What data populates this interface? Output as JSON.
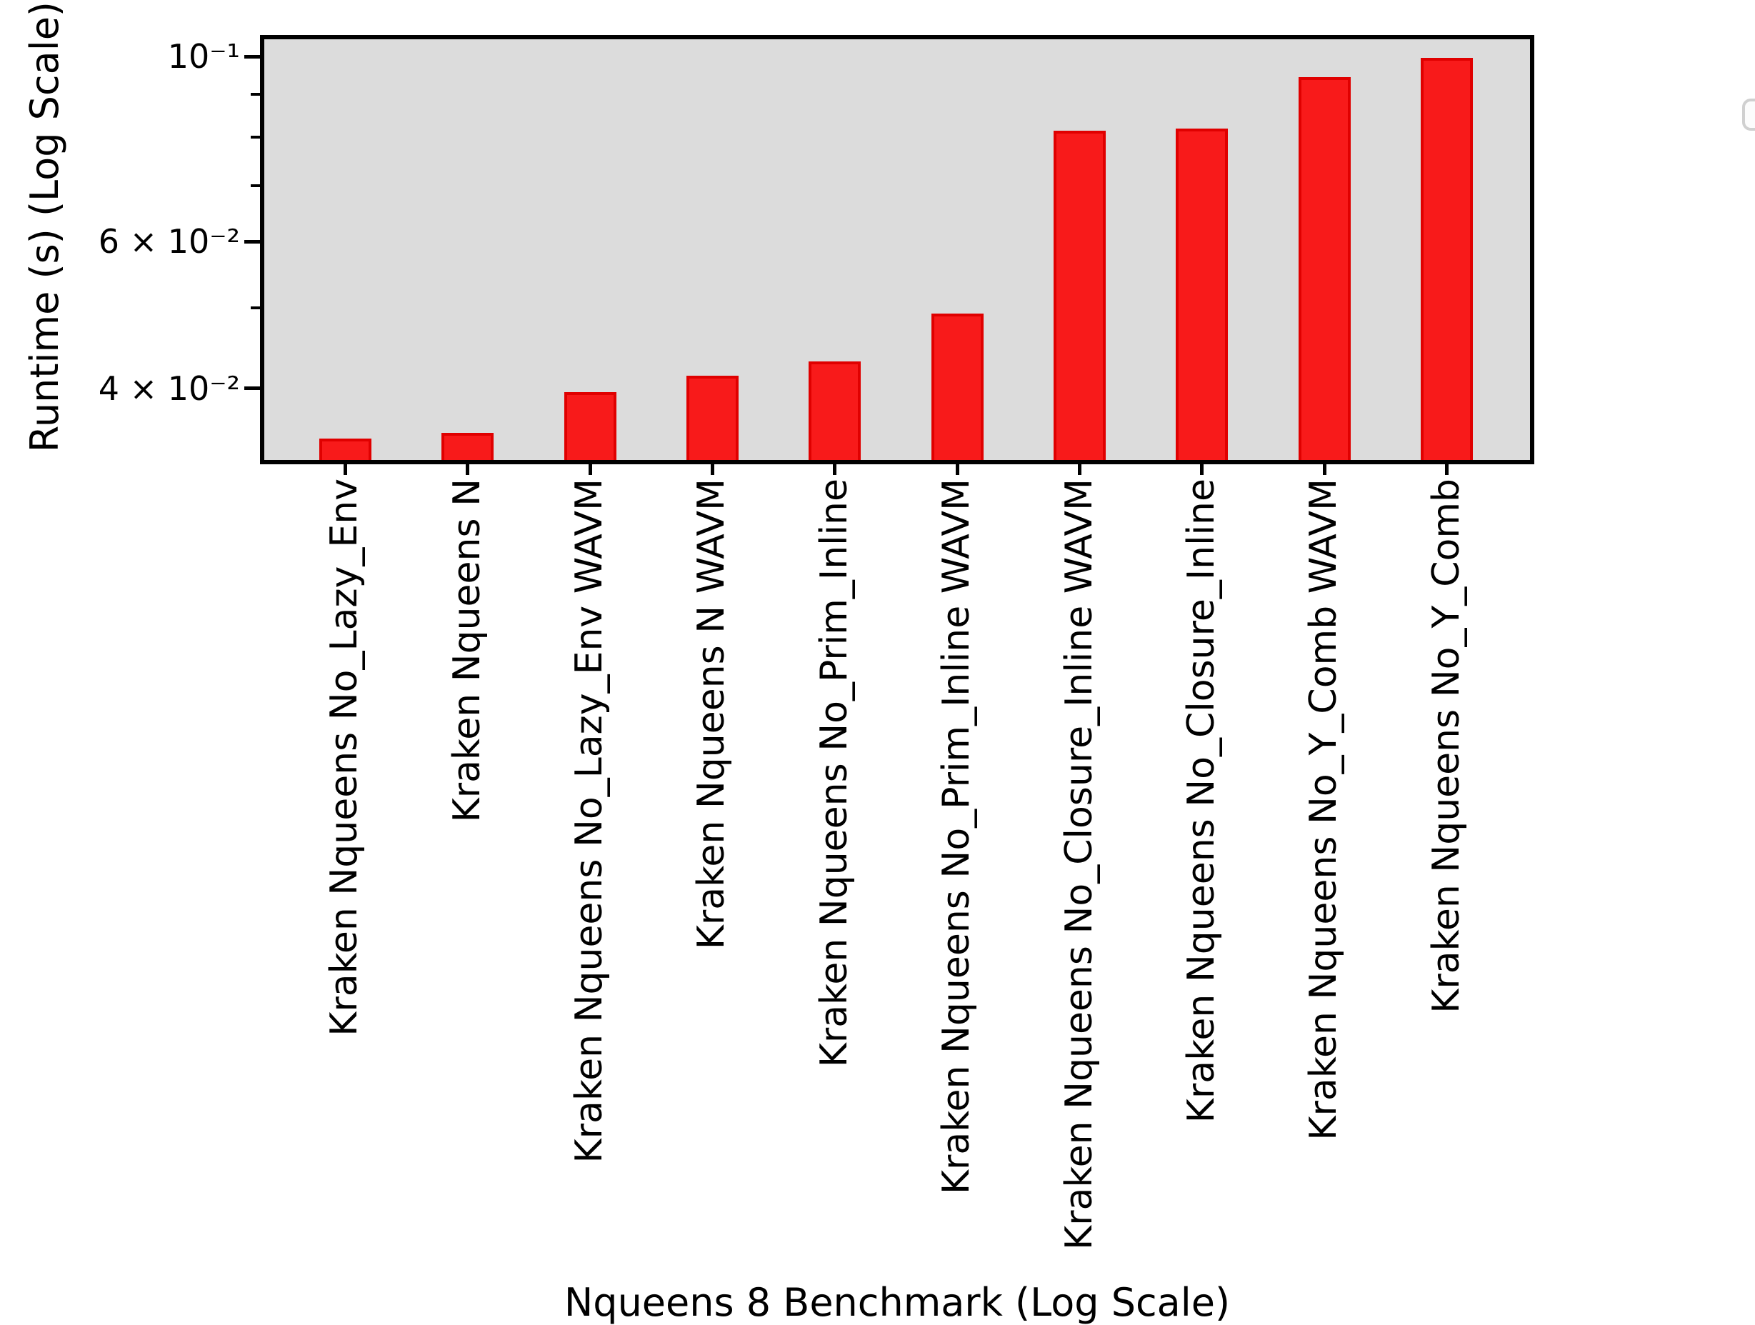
{
  "figure": {
    "y_axis_label": "Runtime (s) (Log Scale)",
    "x_axis_label": "Nqueens 8 Benchmark (Log Scale)",
    "plot_background_color": "#dcdcdc",
    "bar_fill_color": "#f81a1a",
    "bar_edge_color": "#e00000",
    "spine_color": "#000000"
  },
  "chart_data": {
    "type": "bar",
    "title": "",
    "xlabel": "Nqueens 8 Benchmark (Log Scale)",
    "ylabel": "Runtime (s) (Log Scale)",
    "yscale": "log",
    "ylim": [
      0.0328,
      0.105
    ],
    "grid": false,
    "legend": {
      "visible": true,
      "position": "upper right",
      "entries": []
    },
    "categories": [
      "Kraken Nqueens No_Lazy_Env",
      "Kraken Nqueens N",
      "Kraken Nqueens No_Lazy_Env WAVM",
      "Kraken Nqueens N WAVM",
      "Kraken Nqueens No_Prim_Inline",
      "Kraken Nqueens No_Prim_Inline WAVM",
      "Kraken Nqueens No_Closure_Inline WAVM",
      "Kraken Nqueens No_Closure_Inline",
      "Kraken Nqueens No_Y_Comb WAVM",
      "Kraken Nqueens No_Y_Comb"
    ],
    "values": [
      0.0348,
      0.0354,
      0.0396,
      0.0414,
      0.0431,
      0.0492,
      0.0815,
      0.0819,
      0.0945,
      0.0996
    ],
    "y_major_ticks": [
      {
        "value": 0.1,
        "label": "10⁻¹"
      },
      {
        "value": 0.06,
        "label": "6 × 10⁻²"
      },
      {
        "value": 0.04,
        "label": "4 × 10⁻²"
      }
    ],
    "y_minor_ticks": [
      0.09,
      0.08,
      0.07,
      0.05
    ]
  }
}
